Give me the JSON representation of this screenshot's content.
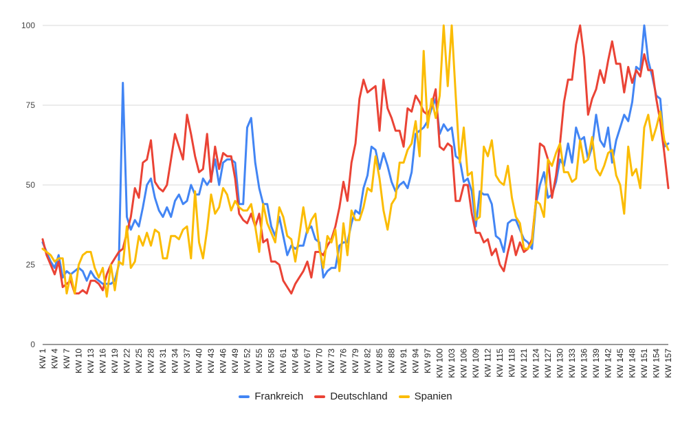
{
  "chart_data": {
    "type": "line",
    "title": "",
    "xlabel": "",
    "ylabel": "",
    "ylim": [
      0,
      100
    ],
    "yticks": [
      0,
      25,
      50,
      75,
      100
    ],
    "grid": true,
    "legend_position": "bottom",
    "x": [
      "KW 1",
      "KW 2",
      "KW 3",
      "KW 4",
      "KW 5",
      "KW 6",
      "KW 7",
      "KW 8",
      "KW 9",
      "KW 10",
      "KW 11",
      "KW 12",
      "KW 13",
      "KW 14",
      "KW 15",
      "KW 16",
      "KW 17",
      "KW 18",
      "KW 19",
      "KW 20",
      "KW 21",
      "KW 22",
      "KW 23",
      "KW 24",
      "KW 25",
      "KW 26",
      "KW 27",
      "KW 28",
      "KW 29",
      "KW 30",
      "KW 31",
      "KW 32",
      "KW 33",
      "KW 34",
      "KW 35",
      "KW 36",
      "KW 37",
      "KW 38",
      "KW 39",
      "KW 40",
      "KW 41",
      "KW 42",
      "KW 43",
      "KW 44",
      "KW 45",
      "KW 46",
      "KW 47",
      "KW 48",
      "KW 49",
      "KW 50",
      "KW 51",
      "KW 52",
      "KW 53",
      "KW 54",
      "KW 55",
      "KW 56",
      "KW 57",
      "KW 58",
      "KW 59",
      "KW 60",
      "KW 61",
      "KW 62",
      "KW 63",
      "KW 64",
      "KW 65",
      "KW 66",
      "KW 67",
      "KW 68",
      "KW 69",
      "KW 70",
      "KW 71",
      "KW 72",
      "KW 73",
      "KW 74",
      "KW 75",
      "KW 76",
      "KW 77",
      "KW 78",
      "KW 79",
      "KW 80",
      "KW 81",
      "KW 82",
      "KW 83",
      "KW 84",
      "KW 85",
      "KW 86",
      "KW 87",
      "KW 88",
      "KW 89",
      "KW 90",
      "KW 91",
      "KW 92",
      "KW 93",
      "KW 94",
      "KW 95",
      "KW 96",
      "KW 97",
      "KW 98",
      "KW 99",
      "KW 100",
      "KW 101",
      "KW 102",
      "KW 103",
      "KW 104",
      "KW 105",
      "KW 106",
      "KW 107",
      "KW 108",
      "KW 109",
      "KW 110",
      "KW 111",
      "KW 112",
      "KW 113",
      "KW 114",
      "KW 115",
      "KW 116",
      "KW 117",
      "KW 118",
      "KW 119",
      "KW 120",
      "KW 121",
      "KW 122",
      "KW 123",
      "KW 124",
      "KW 125",
      "KW 126",
      "KW 127",
      "KW 128",
      "KW 129",
      "KW 130",
      "KW 131",
      "KW 132",
      "KW 133",
      "KW 134",
      "KW 135",
      "KW 136",
      "KW 137",
      "KW 138",
      "KW 139",
      "KW 140",
      "KW 141",
      "KW 142",
      "KW 143",
      "KW 144",
      "KW 145",
      "KW 146",
      "KW 147",
      "KW 148",
      "KW 149",
      "KW 150",
      "KW 151",
      "KW 152",
      "KW 153",
      "KW 154",
      "KW 155",
      "KW 156",
      "KW 157"
    ],
    "tick_labels": [
      "KW 1",
      "KW 4",
      "KW 7",
      "KW 10",
      "KW 13",
      "KW 16",
      "KW 19",
      "KW 22",
      "KW 25",
      "KW 28",
      "KW 31",
      "KW 34",
      "KW 37",
      "KW 40",
      "KW 43",
      "KW 46",
      "KW 49",
      "KW 52",
      "KW 55",
      "KW 58",
      "KW 61",
      "KW 64",
      "KW 67",
      "KW 70",
      "KW 73",
      "KW 76",
      "KW 79",
      "KW 82",
      "KW 85",
      "KW 88",
      "KW 91",
      "KW 94",
      "KW 97",
      "KW 100",
      "KW 103",
      "KW 106",
      "KW 109",
      "KW 112",
      "KW 115",
      "KW 118",
      "KW 121",
      "KW 124",
      "KW 127",
      "KW 130",
      "KW 133",
      "KW 136",
      "KW 139",
      "KW 142",
      "KW 145",
      "KW 148",
      "KW 151",
      "KW 154",
      "KW 157"
    ],
    "series": [
      {
        "name": "Frankreich",
        "color": "#4285f4",
        "values": [
          32,
          29,
          26,
          24,
          28,
          21,
          23,
          22,
          23,
          24,
          23,
          20,
          23,
          21,
          20,
          19,
          19,
          19,
          20,
          25,
          82,
          40,
          36,
          39,
          37,
          43,
          50,
          52,
          46,
          42,
          40,
          43,
          40,
          45,
          47,
          44,
          45,
          50,
          47,
          47,
          52,
          50,
          52,
          58,
          50,
          57,
          58,
          58,
          57,
          44,
          44,
          68,
          71,
          57,
          49,
          44,
          44,
          37,
          34,
          40,
          34,
          28,
          31,
          30,
          31,
          31,
          36,
          37,
          33,
          32,
          21,
          23,
          24,
          24,
          31,
          32,
          32,
          38,
          42,
          41,
          49,
          53,
          62,
          61,
          55,
          60,
          56,
          51,
          48,
          50,
          51,
          49,
          54,
          66,
          67,
          68,
          70,
          74,
          77,
          66,
          69,
          67,
          68,
          59,
          58,
          51,
          52,
          48,
          37,
          48,
          47,
          47,
          44,
          34,
          33,
          29,
          38,
          39,
          39,
          36,
          33,
          32,
          30,
          44,
          50,
          54,
          46,
          47,
          51,
          58,
          56,
          63,
          57,
          68,
          64,
          65,
          58,
          62,
          72,
          64,
          62,
          68,
          57,
          64,
          68,
          72,
          70,
          76,
          87,
          86,
          100,
          89,
          84,
          78,
          77,
          62,
          63
        ]
      },
      {
        "name": "Deutschland",
        "color": "#ea4335",
        "values": [
          33,
          28,
          25,
          22,
          26,
          18,
          19,
          20,
          16,
          16,
          17,
          16,
          20,
          20,
          19,
          17,
          22,
          25,
          27,
          29,
          30,
          35,
          40,
          49,
          46,
          57,
          58,
          64,
          51,
          49,
          48,
          50,
          58,
          66,
          62,
          58,
          72,
          66,
          59,
          54,
          55,
          66,
          51,
          62,
          55,
          60,
          59,
          59,
          52,
          41,
          39,
          38,
          41,
          37,
          41,
          32,
          33,
          26,
          26,
          25,
          20,
          18,
          16,
          19,
          21,
          23,
          26,
          21,
          29,
          29,
          28,
          31,
          33,
          37,
          43,
          51,
          45,
          57,
          63,
          77,
          83,
          79,
          80,
          81,
          67,
          83,
          74,
          71,
          67,
          67,
          62,
          74,
          73,
          78,
          76,
          73,
          72,
          75,
          80,
          62,
          61,
          63,
          62,
          45,
          45,
          50,
          50,
          41,
          35,
          35,
          32,
          33,
          28,
          30,
          25,
          23,
          29,
          34,
          28,
          32,
          29,
          30,
          33,
          45,
          63,
          62,
          58,
          46,
          53,
          63,
          76,
          83,
          83,
          94,
          100,
          90,
          72,
          77,
          80,
          86,
          82,
          89,
          95,
          88,
          88,
          79,
          87,
          82,
          86,
          84,
          91,
          86,
          86,
          77,
          70,
          60,
          49
        ]
      },
      {
        "name": "Spanien",
        "color": "#fbbc04",
        "values": [
          30,
          29,
          28,
          26,
          27,
          27,
          16,
          22,
          16,
          25,
          28,
          29,
          29,
          24,
          21,
          24,
          15,
          25,
          17,
          26,
          25,
          37,
          24,
          26,
          34,
          31,
          35,
          31,
          36,
          35,
          27,
          27,
          34,
          34,
          33,
          36,
          37,
          27,
          48,
          32,
          27,
          36,
          47,
          41,
          43,
          49,
          47,
          42,
          45,
          43,
          42,
          42,
          44,
          37,
          29,
          44,
          38,
          35,
          32,
          43,
          40,
          34,
          33,
          26,
          34,
          43,
          35,
          39,
          41,
          30,
          24,
          34,
          32,
          36,
          23,
          38,
          28,
          42,
          39,
          39,
          43,
          49,
          48,
          59,
          52,
          42,
          36,
          44,
          46,
          57,
          57,
          61,
          63,
          70,
          59,
          92,
          68,
          77,
          71,
          78,
          100,
          81,
          100,
          78,
          57,
          68,
          53,
          54,
          39,
          40,
          62,
          59,
          64,
          53,
          51,
          50,
          56,
          46,
          40,
          38,
          30,
          30,
          32,
          45,
          44,
          40,
          58,
          56,
          60,
          63,
          54,
          54,
          51,
          52,
          64,
          57,
          58,
          65,
          55,
          53,
          56,
          60,
          61,
          53,
          50,
          41,
          62,
          53,
          55,
          49,
          68,
          72,
          64,
          68,
          73,
          64,
          61
        ]
      }
    ]
  }
}
